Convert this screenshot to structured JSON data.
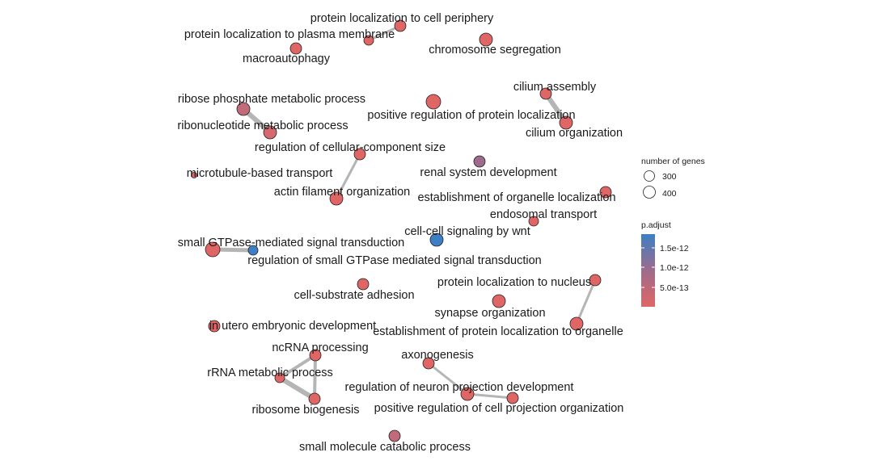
{
  "colors": {
    "high": "#e06666",
    "mid": "#9e6b8c",
    "low": "#3d7fc4",
    "edge": "#b5b5b5"
  },
  "nodes": {
    "n1": {
      "label": "protein localization to cell periphery"
    },
    "n2": {
      "label": "protein localization to plasma membrane"
    },
    "n3": {
      "label": "chromosome segregation"
    },
    "n4": {
      "label": "macroautophagy"
    },
    "n5": {
      "label": "cilium assembly"
    },
    "n6": {
      "label": "ribose phosphate metabolic process"
    },
    "n7": {
      "label": "positive regulation of protein localization"
    },
    "n8": {
      "label": "ribonucleotide metabolic process"
    },
    "n9": {
      "label": "cilium organization"
    },
    "n10": {
      "label": "regulation of cellular-component size"
    },
    "n11": {
      "label": "microtubule-based transport"
    },
    "n12": {
      "label": "renal system development"
    },
    "n13": {
      "label": "actin filament organization"
    },
    "n14": {
      "label": "establishment of organelle localization"
    },
    "n15": {
      "label": "endosomal transport"
    },
    "n16": {
      "label": "cell-cell signaling by wnt"
    },
    "n17": {
      "label": "small GTPase-mediated signal transduction"
    },
    "n18": {
      "label": "regulation of small GTPase mediated signal transduction"
    },
    "n19": {
      "label": "protein localization to nucleus"
    },
    "n20": {
      "label": "cell-substrate adhesion"
    },
    "n21": {
      "label": "synapse organization"
    },
    "n22": {
      "label": "in utero embryonic development"
    },
    "n23": {
      "label": "establishment of protein localization to organelle"
    },
    "n24": {
      "label": "ncRNA processing"
    },
    "n25": {
      "label": "axonogenesis"
    },
    "n26": {
      "label": "rRNA metabolic process"
    },
    "n27": {
      "label": "regulation of neuron projection development"
    },
    "n28": {
      "label": "ribosome biogenesis"
    },
    "n29": {
      "label": "positive regulation of cell projection organization"
    },
    "n30": {
      "label": "small molecule catabolic process"
    }
  },
  "legend": {
    "size_title": "number of genes",
    "size_values": [
      "300",
      "400"
    ],
    "color_title": "p.adjust",
    "color_ticks": [
      "1.5e-12",
      "1.0e-12",
      "5.0e-13"
    ]
  }
}
